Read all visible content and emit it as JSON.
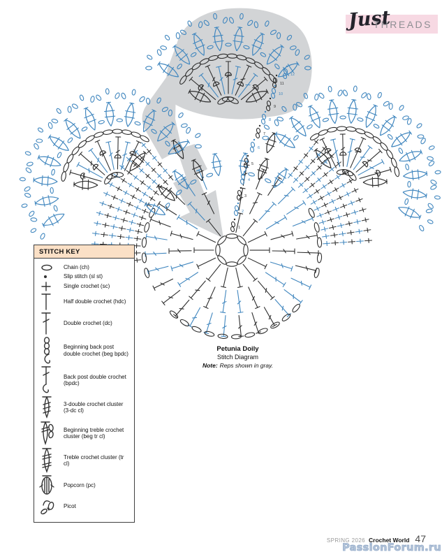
{
  "banner": {
    "script_word": "Just",
    "caps_word": "THREADS"
  },
  "caption": {
    "title": "Petunia Doily",
    "subtitle": "Stitch Diagram",
    "note_label": "Note:",
    "note_text": "Reps shown in gray."
  },
  "stitch_key": {
    "title": "STITCH KEY",
    "items": [
      {
        "icon": "chain-icon",
        "label": "Chain (ch)"
      },
      {
        "icon": "slip-stitch-icon",
        "label": "Slip stitch (sl st)"
      },
      {
        "icon": "single-crochet-icon",
        "label": "Single crochet (sc)"
      },
      {
        "icon": "half-double-crochet-icon",
        "label": "Half double crochet (hdc)"
      },
      {
        "icon": "double-crochet-icon",
        "label": "Double crochet (dc)"
      },
      {
        "icon": "beginning-back-post-double-crochet-icon",
        "label": "Beginning back post double crochet (beg bpdc)"
      },
      {
        "icon": "back-post-double-crochet-icon",
        "label": "Back post double crochet (bpdc)"
      },
      {
        "icon": "three-double-crochet-cluster-icon",
        "label": "3-double crochet cluster (3-dc cl)"
      },
      {
        "icon": "beginning-treble-crochet-cluster-icon",
        "label": "Beginning treble crochet cluster (beg tr cl)"
      },
      {
        "icon": "treble-crochet-cluster-icon",
        "label": "Treble crochet cluster (tr cl)"
      },
      {
        "icon": "popcorn-icon",
        "label": "Popcorn (pc)"
      },
      {
        "icon": "picot-icon",
        "label": "Picot"
      }
    ]
  },
  "diagram": {
    "round_numbers": [
      "1",
      "2",
      "3",
      "4",
      "5",
      "6",
      "7",
      "8",
      "9",
      "10",
      "11",
      "12"
    ],
    "colors": {
      "stitch_blue": "#4187bf",
      "stitch_black": "#2e2e2e",
      "rep_gray": "#d2d4d6"
    }
  },
  "footer": {
    "season": "SPRING 2026",
    "magazine": "Crochet World",
    "page": "47"
  },
  "watermark": "PassionForum.ru"
}
